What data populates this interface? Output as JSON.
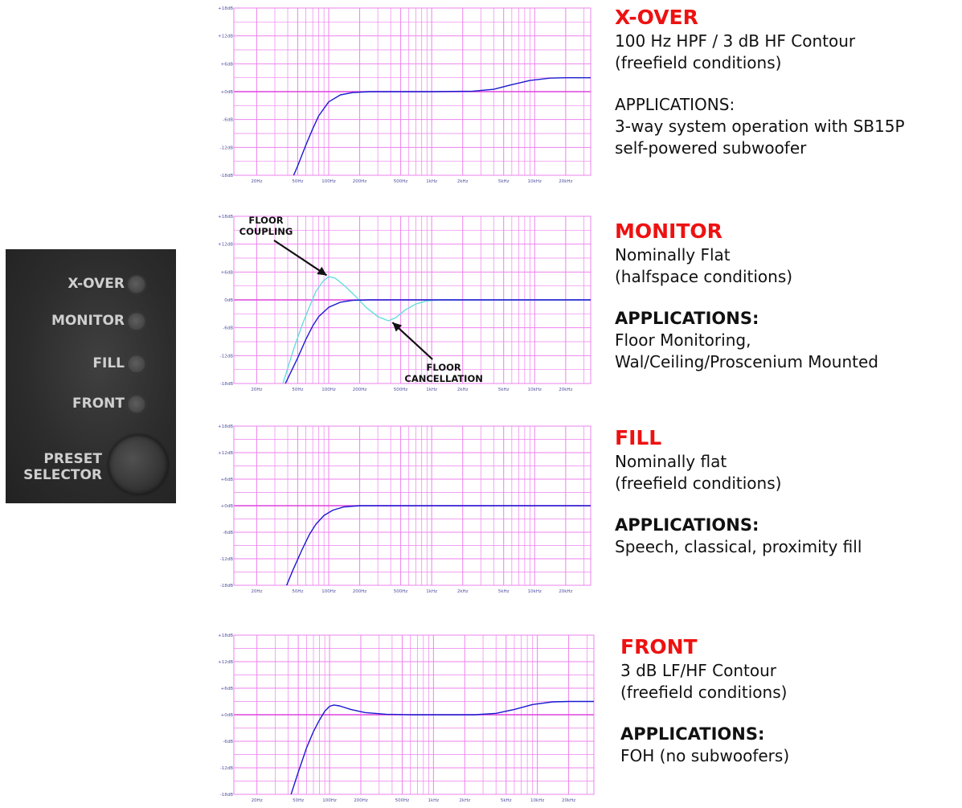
{
  "panel": {
    "buttons": [
      {
        "label": "X-OVER"
      },
      {
        "label": "MONITOR"
      },
      {
        "label": "FILL"
      },
      {
        "label": "FRONT"
      }
    ],
    "preset_label_line1": "PRESET",
    "preset_label_line2": "SELECTOR"
  },
  "colors": {
    "grid": "#ee82ee",
    "zero_line": "#dd44dd",
    "curve": "#1a1ad0",
    "curve_light": "#66dddd",
    "title_red": "#ee1111"
  },
  "presets": [
    {
      "title": "X-OVER",
      "lines": [
        "100 Hz HPF / 3 dB HF Contour",
        "(freefield conditions)"
      ],
      "apps_heading": "APPLICATIONS:",
      "apps_bold": false,
      "apps_lines": [
        "3-way system operation with SB15P",
        "self-powered subwoofer"
      ]
    },
    {
      "title": "MONITOR",
      "lines": [
        "Nominally Flat",
        "(halfspace conditions)"
      ],
      "apps_heading": "APPLICATIONS:",
      "apps_bold": true,
      "apps_lines": [
        "Floor Monitoring,",
        "Wal/Ceiling/Proscenium Mounted"
      ]
    },
    {
      "title": "FILL",
      "lines": [
        "Nominally flat",
        "(freefield conditions)"
      ],
      "apps_heading": "APPLICATIONS:",
      "apps_bold": true,
      "apps_lines": [
        "Speech, classical, proximity fill"
      ]
    },
    {
      "title": "FRONT",
      "lines": [
        "3 dB LF/HF Contour",
        "(freefield conditions)"
      ],
      "apps_heading": "APPLICATIONS:",
      "apps_bold": true,
      "apps_lines": [
        "FOH (no subwoofers)"
      ]
    }
  ],
  "chart_data": [
    {
      "type": "line",
      "title": "",
      "x_scale": "log",
      "xlim": [
        12,
        35000
      ],
      "ylim": [
        -18,
        18
      ],
      "y_ticks": [
        "+18dB",
        "+12dB",
        "+6dB",
        "+0dB",
        "-6dB",
        "-12dB",
        "-18dB"
      ],
      "x_ticks": [
        "20Hz",
        "50Hz",
        "100Hz",
        "200Hz",
        "500Hz",
        "1kHz",
        "2kHz",
        "5kHz",
        "10kHz",
        "20kHz"
      ],
      "x_tick_values": [
        20,
        50,
        100,
        200,
        500,
        1000,
        2000,
        5000,
        10000,
        20000
      ],
      "grid": true,
      "series": [
        {
          "points": [
            [
              40,
              -21
            ],
            [
              50,
              -16
            ],
            [
              60,
              -11.5
            ],
            [
              70,
              -8
            ],
            [
              80,
              -5.2
            ],
            [
              100,
              -2.2
            ],
            [
              130,
              -0.7
            ],
            [
              170,
              -0.2
            ],
            [
              250,
              0
            ],
            [
              1000,
              0
            ],
            [
              2500,
              0.1
            ],
            [
              4000,
              0.5
            ],
            [
              6000,
              1.5
            ],
            [
              9000,
              2.4
            ],
            [
              14000,
              2.9
            ],
            [
              20000,
              3
            ],
            [
              35000,
              3
            ]
          ]
        }
      ]
    },
    {
      "type": "line",
      "title": "",
      "x_scale": "log",
      "xlim": [
        12,
        35000
      ],
      "ylim": [
        -18,
        18
      ],
      "y_ticks": [
        "+18dB",
        "+12dB",
        "+6dB",
        "0dB",
        "-6dB",
        "-12dB",
        "-18dB"
      ],
      "x_ticks": [
        "20Hz",
        "50Hz",
        "100Hz",
        "200Hz",
        "500Hz",
        "1kHz",
        "2kHz",
        "5kHz",
        "10kHz",
        "20kHz"
      ],
      "x_tick_values": [
        20,
        50,
        100,
        200,
        500,
        1000,
        2000,
        5000,
        10000,
        20000
      ],
      "grid": true,
      "annotations": [
        {
          "text": [
            "FLOOR",
            "COUPLING"
          ],
          "x": 100,
          "y": 5
        },
        {
          "text": [
            "FLOOR",
            "CANCELLATION"
          ],
          "x": 400,
          "y": -4.5
        }
      ],
      "series": [
        {
          "color_key": "curve_light",
          "points": [
            [
              36,
              -18
            ],
            [
              45,
              -11
            ],
            [
              55,
              -5.5
            ],
            [
              65,
              -1.5
            ],
            [
              75,
              1.8
            ],
            [
              88,
              4
            ],
            [
              100,
              5
            ],
            [
              115,
              4.7
            ],
            [
              140,
              3.2
            ],
            [
              180,
              0.9
            ],
            [
              230,
              -1.6
            ],
            [
              300,
              -3.6
            ],
            [
              380,
              -4.5
            ],
            [
              450,
              -3.8
            ],
            [
              550,
              -2.2
            ],
            [
              700,
              -0.9
            ],
            [
              900,
              -0.2
            ],
            [
              1200,
              0
            ],
            [
              35000,
              0
            ]
          ]
        },
        {
          "color_key": "curve",
          "points": [
            [
              38,
              -18
            ],
            [
              50,
              -12.5
            ],
            [
              60,
              -8.5
            ],
            [
              70,
              -5.6
            ],
            [
              80,
              -3.6
            ],
            [
              100,
              -1.6
            ],
            [
              130,
              -0.5
            ],
            [
              170,
              -0.1
            ],
            [
              250,
              0
            ],
            [
              35000,
              0
            ]
          ]
        }
      ]
    },
    {
      "type": "line",
      "title": "",
      "x_scale": "log",
      "xlim": [
        12,
        35000
      ],
      "ylim": [
        -18,
        18
      ],
      "y_ticks": [
        "+18dB",
        "+12dB",
        "+6dB",
        "+0dB",
        "-6dB",
        "-12dB",
        "-18dB"
      ],
      "x_ticks": [
        "20Hz",
        "50Hz",
        "100Hz",
        "200Hz",
        "500Hz",
        "1kHz",
        "2kHz",
        "5kHz",
        "10kHz",
        "20kHz"
      ],
      "x_tick_values": [
        20,
        50,
        100,
        200,
        500,
        1000,
        2000,
        5000,
        10000,
        20000
      ],
      "grid": true,
      "series": [
        {
          "points": [
            [
              36,
              -20
            ],
            [
              45,
              -14.5
            ],
            [
              55,
              -10
            ],
            [
              65,
              -6.5
            ],
            [
              75,
              -4.2
            ],
            [
              90,
              -2.2
            ],
            [
              110,
              -1
            ],
            [
              140,
              -0.3
            ],
            [
              200,
              0
            ],
            [
              35000,
              0
            ]
          ]
        }
      ]
    },
    {
      "type": "line",
      "title": "",
      "x_scale": "log",
      "xlim": [
        12,
        35000
      ],
      "ylim": [
        -18,
        18
      ],
      "y_ticks": [
        "+18dB",
        "+12dB",
        "+6dB",
        "+0dB",
        "-6dB",
        "-12dB",
        "-18dB"
      ],
      "x_ticks": [
        "20Hz",
        "50Hz",
        "100Hz",
        "200Hz",
        "500Hz",
        "1kHz",
        "2kHz",
        "5kHz",
        "10kHz",
        "20kHz"
      ],
      "x_tick_values": [
        20,
        50,
        100,
        200,
        500,
        1000,
        2000,
        5000,
        10000,
        20000
      ],
      "grid": true,
      "series": [
        {
          "points": [
            [
              40,
              -20
            ],
            [
              50,
              -13
            ],
            [
              60,
              -7.5
            ],
            [
              70,
              -3.8
            ],
            [
              80,
              -1.2
            ],
            [
              90,
              0.8
            ],
            [
              100,
              1.9
            ],
            [
              110,
              2.2
            ],
            [
              125,
              2
            ],
            [
              160,
              1.2
            ],
            [
              220,
              0.5
            ],
            [
              350,
              0.1
            ],
            [
              600,
              0
            ],
            [
              2500,
              0
            ],
            [
              4000,
              0.3
            ],
            [
              6000,
              1.2
            ],
            [
              9000,
              2.3
            ],
            [
              14000,
              2.9
            ],
            [
              20000,
              3
            ],
            [
              35000,
              3
            ]
          ]
        }
      ]
    }
  ]
}
